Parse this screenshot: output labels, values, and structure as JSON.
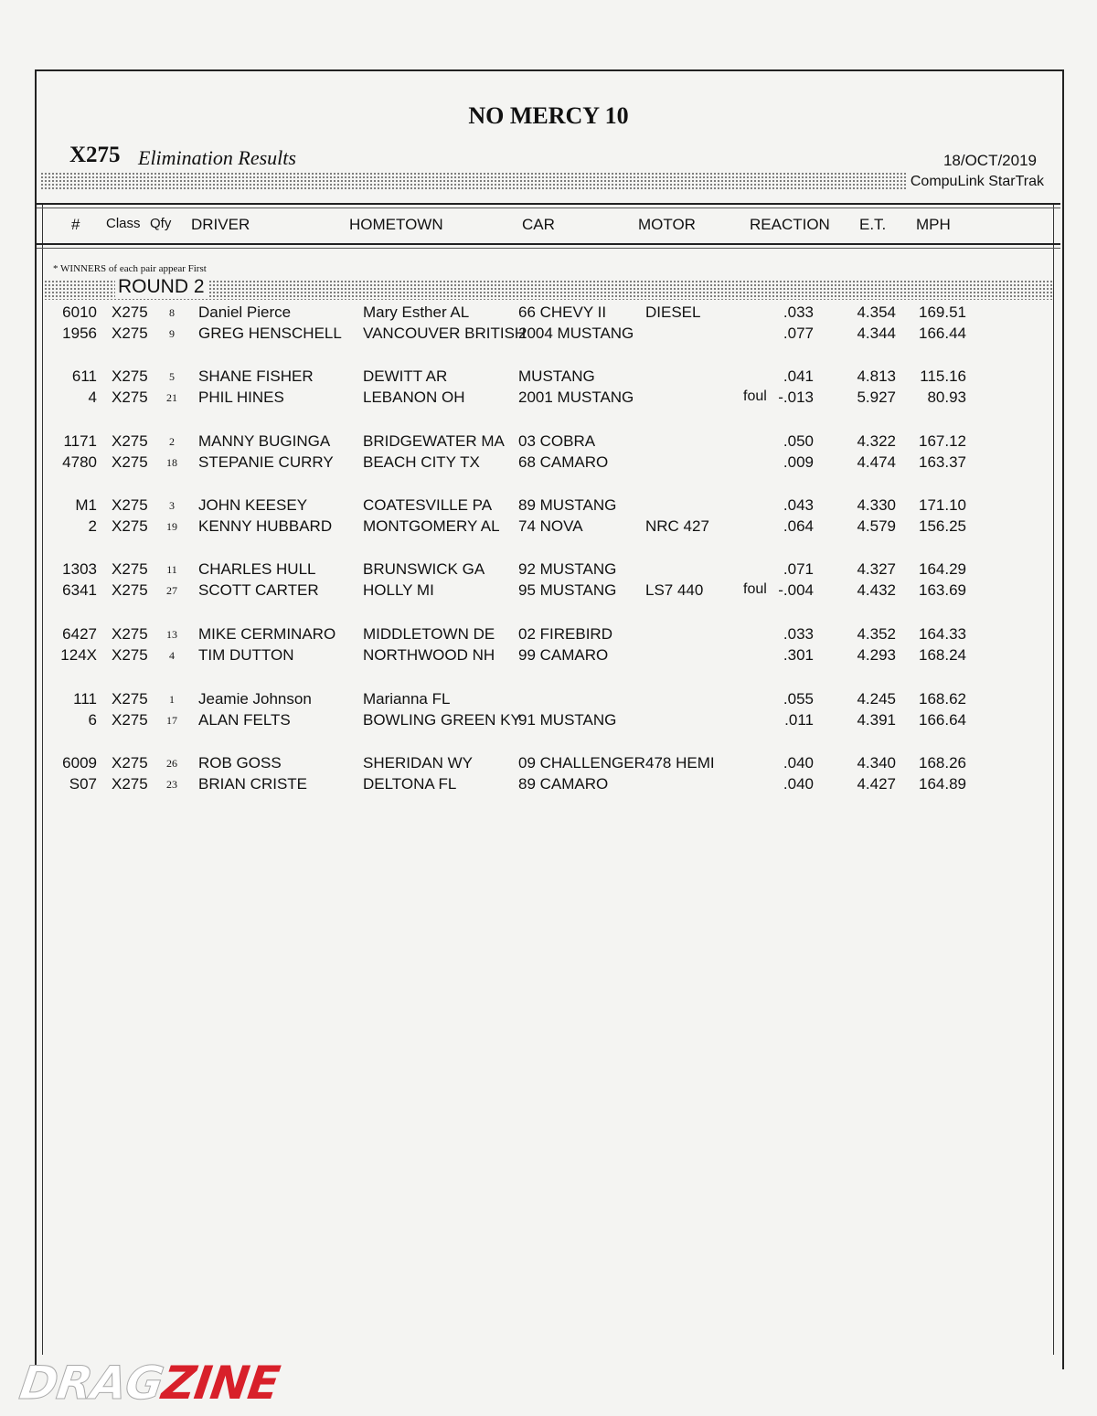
{
  "event_title": "NO MERCY 10",
  "class_name": "X275",
  "subtitle": "Elimination Results",
  "date": "18/OCT/2019",
  "system": "CompuLink  StarTrak",
  "headers": {
    "num": "#",
    "class": "Class",
    "qfy": "Qfy",
    "driver": "DRIVER",
    "hometown": "HOMETOWN",
    "car": "CAR",
    "motor": "MOTOR",
    "reaction": "REACTION",
    "et": "E.T.",
    "mph": "MPH"
  },
  "note": "* WINNERS of each pair appear First",
  "round": "ROUND 2",
  "pairs": [
    [
      {
        "num": "6010",
        "class": "X275",
        "qfy": "8",
        "driver": "Daniel Pierce",
        "hometown": "Mary Esther AL",
        "car": "66 CHEVY II",
        "motor": "DIESEL",
        "foul": "",
        "reaction": ".033",
        "et": "4.354",
        "mph": "169.51"
      },
      {
        "num": "1956",
        "class": "X275",
        "qfy": "9",
        "driver": "GREG HENSCHELL",
        "hometown": "VANCOUVER BRITISH",
        "car": "2004 MUSTANG",
        "motor": "",
        "foul": "",
        "reaction": ".077",
        "et": "4.344",
        "mph": "166.44"
      }
    ],
    [
      {
        "num": "611",
        "class": "X275",
        "qfy": "5",
        "driver": "SHANE FISHER",
        "hometown": "DEWITT AR",
        "car": "MUSTANG",
        "motor": "",
        "foul": "",
        "reaction": ".041",
        "et": "4.813",
        "mph": "115.16"
      },
      {
        "num": "4",
        "class": "X275",
        "qfy": "21",
        "driver": "PHIL HINES",
        "hometown": "LEBANON OH",
        "car": "2001 MUSTANG",
        "motor": "",
        "foul": "foul",
        "reaction": "-.013",
        "et": "5.927",
        "mph": "80.93"
      }
    ],
    [
      {
        "num": "1171",
        "class": "X275",
        "qfy": "2",
        "driver": "MANNY BUGINGA",
        "hometown": "BRIDGEWATER MA",
        "car": "03 COBRA",
        "motor": "",
        "foul": "",
        "reaction": ".050",
        "et": "4.322",
        "mph": "167.12"
      },
      {
        "num": "4780",
        "class": "X275",
        "qfy": "18",
        "driver": "STEPANIE CURRY",
        "hometown": "BEACH CITY TX",
        "car": "68 CAMARO",
        "motor": "",
        "foul": "",
        "reaction": ".009",
        "et": "4.474",
        "mph": "163.37"
      }
    ],
    [
      {
        "num": "M1",
        "class": "X275",
        "qfy": "3",
        "driver": "JOHN KEESEY",
        "hometown": "COATESVILLE  PA",
        "car": "89 MUSTANG",
        "motor": "",
        "foul": "",
        "reaction": ".043",
        "et": "4.330",
        "mph": "171.10"
      },
      {
        "num": "2",
        "class": "X275",
        "qfy": "19",
        "driver": "KENNY HUBBARD",
        "hometown": "MONTGOMERY AL",
        "car": "74 NOVA",
        "motor": "NRC 427",
        "foul": "",
        "reaction": ".064",
        "et": "4.579",
        "mph": "156.25"
      }
    ],
    [
      {
        "num": "1303",
        "class": "X275",
        "qfy": "11",
        "driver": "CHARLES HULL",
        "hometown": "BRUNSWICK GA",
        "car": "92 MUSTANG",
        "motor": "",
        "foul": "",
        "reaction": ".071",
        "et": "4.327",
        "mph": "164.29"
      },
      {
        "num": "6341",
        "class": "X275",
        "qfy": "27",
        "driver": "SCOTT CARTER",
        "hometown": "HOLLY  MI",
        "car": "95 MUSTANG",
        "motor": "LS7 440",
        "foul": "foul",
        "reaction": "-.004",
        "et": "4.432",
        "mph": "163.69"
      }
    ],
    [
      {
        "num": "6427",
        "class": "X275",
        "qfy": "13",
        "driver": "MIKE CERMINARO",
        "hometown": "MIDDLETOWN DE",
        "car": "02 FIREBIRD",
        "motor": "",
        "foul": "",
        "reaction": ".033",
        "et": "4.352",
        "mph": "164.33"
      },
      {
        "num": "124X",
        "class": "X275",
        "qfy": "4",
        "driver": "TIM DUTTON",
        "hometown": "NORTHWOOD NH",
        "car": "99 CAMARO",
        "motor": "",
        "foul": "",
        "reaction": ".301",
        "et": "4.293",
        "mph": "168.24"
      }
    ],
    [
      {
        "num": "111",
        "class": "X275",
        "qfy": "1",
        "driver": "Jeamie Johnson",
        "hometown": "Marianna FL",
        "car": "",
        "motor": "",
        "foul": "",
        "reaction": ".055",
        "et": "4.245",
        "mph": "168.62"
      },
      {
        "num": "6",
        "class": "X275",
        "qfy": "17",
        "driver": "ALAN FELTS",
        "hometown": "BOWLING GREEN KY",
        "car": "91 MUSTANG",
        "motor": "",
        "foul": "",
        "reaction": ".011",
        "et": "4.391",
        "mph": "166.64"
      }
    ],
    [
      {
        "num": "6009",
        "class": "X275",
        "qfy": "26",
        "driver": "ROB GOSS",
        "hometown": "SHERIDAN WY",
        "car": "09 CHALLENGER",
        "motor": "478 HEMI",
        "foul": "",
        "reaction": ".040",
        "et": "4.340",
        "mph": "168.26"
      },
      {
        "num": "S07",
        "class": "X275",
        "qfy": "23",
        "driver": "BRIAN CRISTE",
        "hometown": "DELTONA FL",
        "car": "89 CAMARO",
        "motor": "",
        "foul": "",
        "reaction": ".040",
        "et": "4.427",
        "mph": "164.89"
      }
    ]
  ],
  "logo": {
    "text_white": "DRAG",
    "text_red": "ZINE",
    "brand_color": "#d8202a"
  }
}
